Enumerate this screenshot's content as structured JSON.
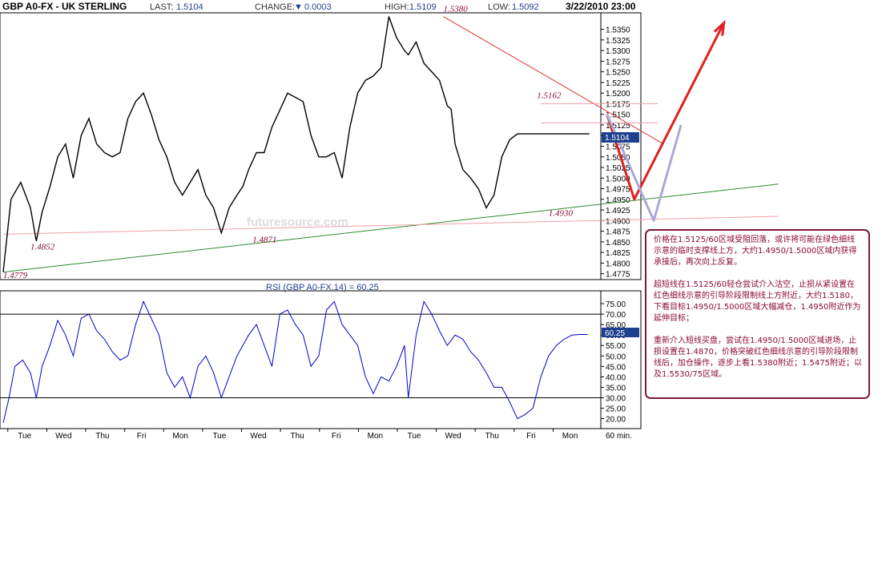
{
  "header": {
    "symbol": "GBP A0-FX - UK STERLING",
    "last_label": "LAST:",
    "last_value": "1.5104",
    "change_label": "CHANGE:",
    "change_arrow": "▼",
    "change_value": "0.0003",
    "high_label": "HIGH:",
    "high_value": "1.5109",
    "high_annotation": "1.5380",
    "low_label": "LOW:",
    "low_value": "1.5092",
    "datetime": "3/22/2010 23:00"
  },
  "watermark": "futuresource.com",
  "colors": {
    "price_line": "#000000",
    "rsi_line": "#0000cc",
    "support_line": "#2e8b2e",
    "resistance_line": "#e03030",
    "forecast_arrow": "#e02020",
    "alt_path": "#a9a9d9",
    "annotation_text": "#8b0a3a",
    "last_price_box": "#1f3f8f",
    "comment_border": "#7a1a3a"
  },
  "chart_data": [
    {
      "type": "line",
      "title": "GBP A0-FX - UK STERLING",
      "interval": "60 min.",
      "x_categories": [
        "Tue",
        "Wed",
        "Thu",
        "Fri",
        "Mon",
        "Tue",
        "Wed",
        "Thu",
        "Fri",
        "Mon",
        "Tue",
        "Wed",
        "Thu",
        "Fri",
        "Mon"
      ],
      "ylim": [
        1.4765,
        1.5385
      ],
      "y_ticks": [
        "1.5350",
        "1.5325",
        "1.5300",
        "1.5275",
        "1.5250",
        "1.5225",
        "1.5200",
        "1.5175",
        "1.5150",
        "1.5125",
        "1.5100",
        "1.5075",
        "1.5050",
        "1.5025",
        "1.5000",
        "1.4975",
        "1.4950",
        "1.4925",
        "1.4900",
        "1.4875",
        "1.4850",
        "1.4825",
        "1.4800",
        "1.4775"
      ],
      "last_price": "1.5104",
      "series": [
        {
          "x": [
            0,
            0.2,
            0.45,
            0.7,
            0.85,
            1.0,
            1.2,
            1.4,
            1.6,
            1.8,
            2.0,
            2.2,
            2.4,
            2.6,
            2.8,
            3.0,
            3.2,
            3.4,
            3.6,
            3.8,
            4.0,
            4.2,
            4.4,
            4.6,
            4.8,
            5.0,
            5.2,
            5.4,
            5.6,
            5.8,
            6.0,
            6.15,
            6.3,
            6.5,
            6.7,
            6.9,
            7.1,
            7.3,
            7.5,
            7.7,
            7.9,
            8.1,
            8.3,
            8.5,
            8.7,
            8.9,
            9.1,
            9.3,
            9.5,
            9.7,
            9.9,
            10.1,
            10.3,
            10.4,
            10.6,
            10.8,
            11.0,
            11.2,
            11.4,
            11.5,
            11.6,
            11.8,
            12.0,
            12.2,
            12.4,
            12.6,
            12.8,
            13.0,
            13.2,
            13.4,
            13.5,
            13.7,
            13.9,
            14.1,
            14.3,
            14.5,
            14.7,
            14.9,
            15.05
          ],
          "y": [
            1.4779,
            1.495,
            1.499,
            1.493,
            1.4852,
            1.492,
            1.498,
            1.505,
            1.508,
            1.5,
            1.51,
            1.514,
            1.508,
            1.506,
            1.505,
            1.506,
            1.514,
            1.518,
            1.52,
            1.515,
            1.509,
            1.505,
            1.499,
            1.496,
            1.499,
            1.502,
            1.496,
            1.493,
            1.4871,
            1.493,
            1.496,
            1.498,
            1.502,
            1.506,
            1.506,
            1.512,
            1.516,
            1.52,
            1.519,
            1.518,
            1.51,
            1.505,
            1.505,
            1.506,
            1.5,
            1.512,
            1.52,
            1.523,
            1.524,
            1.526,
            1.538,
            1.533,
            1.53,
            1.529,
            1.532,
            1.527,
            1.525,
            1.523,
            1.517,
            1.5162,
            1.508,
            1.502,
            1.5,
            1.4975,
            1.493,
            1.496,
            1.505,
            1.509,
            1.5104,
            1.5104,
            1.5104,
            1.5104,
            1.5104,
            1.5104,
            1.5104,
            1.5104,
            1.5104,
            1.5104,
            1.5104
          ]
        }
      ],
      "annotations": [
        {
          "text": "1.4779",
          "x": 0.0,
          "y": 1.4765
        },
        {
          "text": "1.4852",
          "x": 0.7,
          "y": 1.4832
        },
        {
          "text": "1.4871",
          "x": 6.4,
          "y": 1.4849
        },
        {
          "text": "1.5380",
          "x": 11.3,
          "y": 1.5392
        },
        {
          "text": "1.5162",
          "x": 13.7,
          "y": 1.5188
        },
        {
          "text": "1.4930",
          "x": 14.0,
          "y": 1.4911
        }
      ],
      "trendlines": [
        {
          "name": "support",
          "from": [
            0,
            1.4779
          ],
          "to": [
            19.9,
            1.4986
          ]
        },
        {
          "name": "resistance",
          "from": [
            11.3,
            1.538
          ],
          "to": [
            16.9,
            1.5083
          ]
        },
        {
          "name": "level-1.5175",
          "from": [
            13.8,
            1.5175
          ],
          "to": [
            16.8,
            1.5175
          ]
        },
        {
          "name": "level-1.5125",
          "from": [
            13.8,
            1.513
          ],
          "to": [
            16.8,
            1.513
          ]
        },
        {
          "name": "level-1.4900",
          "from": [
            0,
            1.4868
          ],
          "to": [
            19.9,
            1.491
          ]
        }
      ],
      "forecast_paths": [
        {
          "name": "primary",
          "points": [
            [
              15.5,
              1.515
            ],
            [
              16.2,
              1.495
            ],
            [
              18.5,
              1.5365
            ]
          ]
        },
        {
          "name": "alternate",
          "points": [
            [
              15.5,
              1.515
            ],
            [
              16.7,
              1.49
            ],
            [
              17.4,
              1.5125
            ]
          ]
        }
      ]
    },
    {
      "type": "line",
      "title": "RSI (GBP A0-FX,14) = 60.25",
      "ylim": [
        16,
        80
      ],
      "y_ticks": [
        "75.00",
        "70.00",
        "65.00",
        "60.00",
        "55.00",
        "50.00",
        "45.00",
        "40.00",
        "35.00",
        "30.00",
        "25.00",
        "20.00"
      ],
      "reference_lines": [
        70,
        30
      ],
      "last_value": "60.25",
      "series": [
        {
          "x": [
            0,
            0.15,
            0.3,
            0.5,
            0.7,
            0.85,
            1.0,
            1.2,
            1.4,
            1.6,
            1.8,
            2.0,
            2.2,
            2.4,
            2.6,
            2.8,
            3.0,
            3.2,
            3.4,
            3.6,
            3.8,
            4.0,
            4.2,
            4.4,
            4.6,
            4.8,
            5.0,
            5.2,
            5.4,
            5.6,
            5.8,
            6.0,
            6.15,
            6.3,
            6.5,
            6.7,
            6.9,
            7.1,
            7.3,
            7.5,
            7.7,
            7.9,
            8.1,
            8.3,
            8.5,
            8.7,
            8.9,
            9.1,
            9.3,
            9.5,
            9.7,
            9.9,
            10.1,
            10.3,
            10.4,
            10.6,
            10.8,
            11.0,
            11.2,
            11.4,
            11.6,
            11.8,
            12.0,
            12.2,
            12.4,
            12.6,
            12.8,
            13.0,
            13.2,
            13.4,
            13.6,
            13.8,
            14.0,
            14.2,
            14.4,
            14.6,
            14.8,
            15.0
          ],
          "y": [
            18,
            30,
            45,
            48,
            42,
            30,
            45,
            55,
            67,
            60,
            50,
            68,
            70,
            62,
            58,
            52,
            48,
            50,
            65,
            76,
            68,
            60,
            42,
            35,
            40,
            30,
            45,
            50,
            42,
            30,
            40,
            50,
            55,
            60,
            65,
            55,
            45,
            70,
            72,
            65,
            60,
            45,
            50,
            72,
            76,
            65,
            60,
            55,
            40,
            32,
            40,
            38,
            45,
            55,
            30,
            60,
            76,
            70,
            62,
            55,
            60,
            58,
            52,
            48,
            42,
            35,
            35,
            28,
            20,
            22,
            25,
            40,
            50,
            55,
            58,
            60,
            60.25,
            60.25
          ]
        }
      ]
    }
  ],
  "comment": {
    "para1": "价格在1.5125/60区域受阻回落，或许将可能在绿色细线示意的临时支撑线上方，大约1.4950/1.5000区域内获得承接后，再次向上反复。",
    "para2": "超短线在1.5125/60轻仓尝试介入沽空，止损从紧设置在红色细线示意的引导阶段限制线上方附近，大约1.5180，下看目标1.4950/1.5000区域大幅减仓，1.4950附近作为延伸目标；",
    "para3": "重新介入短线买盘，尝试在1.4950/1.5000区域进场，止损设置在1.4870，价格突破红色细线示意的引导阶段限制线后，加仓操作，逐步上看1.5380附近；1.5475附近；以及1.5530/75区域。"
  }
}
